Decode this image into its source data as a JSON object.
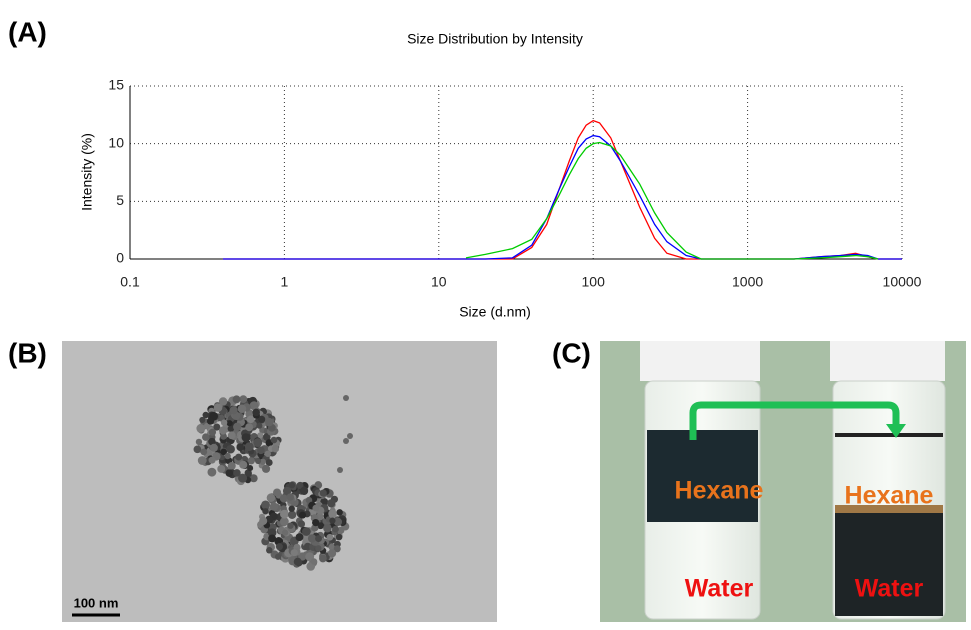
{
  "panel_labels": [
    "(A)",
    "(B)",
    "(C)"
  ],
  "chart_data": {
    "type": "line",
    "title": "Size Distribution by Intensity",
    "x_label": "Size (d.nm)",
    "y_label": "Intensity (%)",
    "xscale": "log",
    "grid": true,
    "xlim": [
      0.1,
      10000
    ],
    "xticks": [
      0.1,
      1,
      10,
      100,
      1000,
      10000
    ],
    "ylim": [
      0,
      15
    ],
    "yticks": [
      0,
      5,
      10,
      15
    ],
    "x": [
      0.4,
      1,
      3,
      10,
      15,
      20,
      30,
      40,
      50,
      60,
      70,
      80,
      90,
      100,
      110,
      130,
      150,
      200,
      250,
      300,
      400,
      500,
      700,
      1000,
      2000,
      3000,
      4000,
      5000,
      6000,
      7000,
      10000
    ],
    "series": [
      {
        "color": "#ff0000",
        "values": [
          0,
          0,
          0,
          0,
          0,
          0,
          0,
          1,
          3,
          6,
          8.5,
          10.5,
          11.6,
          12,
          11.8,
          10.5,
          8.5,
          4.5,
          1.8,
          0.5,
          0,
          0,
          0,
          0,
          0,
          0.2,
          0.3,
          0.5,
          0.2,
          0,
          0
        ]
      },
      {
        "color": "#0000ff",
        "values": [
          0,
          0,
          0,
          0,
          0,
          0,
          0.1,
          1.2,
          3.5,
          6,
          8,
          9.6,
          10.4,
          10.7,
          10.6,
          9.8,
          8.5,
          5.5,
          3,
          1.5,
          0.3,
          0,
          0,
          0,
          0,
          0.2,
          0.3,
          0.4,
          0.3,
          0,
          0
        ]
      },
      {
        "color": "#00cc00",
        "values": [
          null,
          null,
          null,
          null,
          0.1,
          0.4,
          0.9,
          1.7,
          3.5,
          5.5,
          7.3,
          8.7,
          9.6,
          10,
          10.1,
          9.8,
          9,
          6.5,
          4,
          2.3,
          0.6,
          0,
          0,
          0,
          0,
          0.1,
          0.2,
          0.3,
          0.2,
          0,
          null
        ]
      }
    ]
  },
  "tem": {
    "scale_bar": "100 nm"
  },
  "photo": {
    "left_vial": [
      "Hexane",
      "Water"
    ],
    "right_vial": [
      "Hexane",
      "Water"
    ]
  }
}
